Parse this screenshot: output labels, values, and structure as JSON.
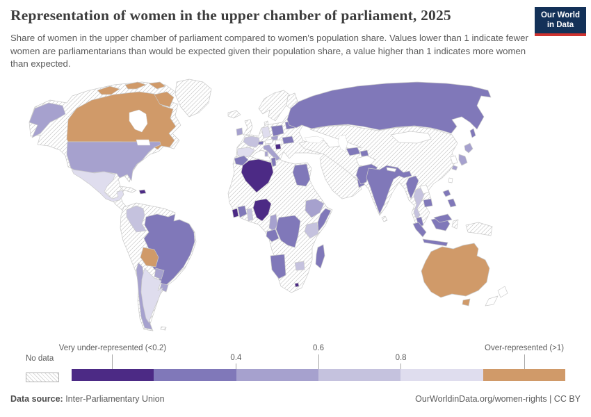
{
  "header": {
    "title": "Representation of women in the upper chamber of parliament, 2025",
    "subtitle": "Share of women in the upper chamber of parliament compared to women's population share. Values lower than 1 indicate fewer women are parliamentarians than would be expected given their population share, a value higher than 1 indicates more women than expected.",
    "logo": {
      "line1": "Our World",
      "line2": "in Data",
      "bg_color": "#133158",
      "accent_color": "#cf322f"
    }
  },
  "legend": {
    "no_data_label": "No data",
    "ticks": [
      {
        "label": "Very under-represented (<0.2)",
        "pos": 0.083,
        "row": "top"
      },
      {
        "label": "0.4",
        "pos": 0.333,
        "row": "bottom"
      },
      {
        "label": "0.6",
        "pos": 0.5,
        "row": "top"
      },
      {
        "label": "0.8",
        "pos": 0.667,
        "row": "bottom"
      },
      {
        "label": "Over-represented (>1)",
        "pos": 0.917,
        "row": "top"
      }
    ],
    "segments": [
      {
        "range": "<0.2",
        "color": "#4c2a85"
      },
      {
        "range": "0.2-0.4",
        "color": "#8078b9"
      },
      {
        "range": "0.4-0.6",
        "color": "#a6a1ce"
      },
      {
        "range": "0.6-0.8",
        "color": "#c5c2de"
      },
      {
        "range": "0.8-1",
        "color": "#dfddee"
      },
      {
        "range": ">1",
        "color": "#d09a69"
      }
    ]
  },
  "footer": {
    "datasource_label": "Data source:",
    "datasource_value": " Inter-Parliamentary Union",
    "credit": "OurWorldinData.org/women-rights | CC BY"
  },
  "chart_data": {
    "type": "heatmap",
    "subtype": "choropleth-world-map",
    "title": "Representation of women in the upper chamber of parliament, 2025",
    "unit": "ratio of share of women in upper chamber to women's population share",
    "bins": [
      "<0.2",
      "0.2-0.4",
      "0.4-0.6",
      "0.6-0.8",
      "0.8-1",
      ">1",
      "no data"
    ],
    "bin_colors": {
      "<0.2": "#4c2a85",
      "0.2-0.4": "#8078b9",
      "0.4-0.6": "#a6a1ce",
      "0.6-0.8": "#c5c2de",
      "0.8-1": "#dfddee",
      ">1": "#d09a69",
      "no data": "hatch"
    },
    "legend_position": "bottom",
    "regions": {
      "Canada": ">1",
      "Australia": ">1",
      "Bolivia": ">1",
      "Mexico": "0.8-1",
      "Argentina": "0.8-1",
      "Spain": "0.8-1",
      "Germany": "0.8-1",
      "Colombia": "0.6-0.8",
      "France": "0.6-0.8",
      "Kenya": "0.6-0.8",
      "Zimbabwe": "0.6-0.8",
      "Ghana": "0.6-0.8",
      "Thailand": "0.6-0.8",
      "United States": "0.4-0.6",
      "Chile": "0.4-0.6",
      "Paraguay": "0.4-0.6",
      "Uruguay": "0.4-0.6",
      "Ireland": "0.4-0.6",
      "Italy": "0.4-0.6",
      "Czechia": "0.4-0.6",
      "Japan": "0.4-0.6",
      "Ethiopia": "0.4-0.6",
      "Cameroon": "0.4-0.6",
      "Russia": "0.2-0.4",
      "Brazil": "0.2-0.4",
      "India": "0.2-0.4",
      "Pakistan": "0.2-0.4",
      "Egypt": "0.2-0.4",
      "Morocco": "0.2-0.4",
      "Tunisia": "0.2-0.4",
      "Poland": "0.2-0.4",
      "Belarus": "0.2-0.4",
      "Romania": "0.2-0.4",
      "Switzerland": "0.2-0.4",
      "DR Congo": "0.2-0.4",
      "Congo": "0.2-0.4",
      "Ivory Coast": "0.2-0.4",
      "Somalia": "0.2-0.4",
      "Namibia": "0.2-0.4",
      "Madagascar": "0.2-0.4",
      "Oman": "0.2-0.4",
      "Uzbekistan": "0.2-0.4",
      "Tajikistan": "0.2-0.4",
      "Myanmar": "0.2-0.4",
      "Cambodia": "0.2-0.4",
      "Malaysia": "0.2-0.4",
      "Indonesia": "0.2-0.4",
      "Philippines": "0.2-0.4",
      "Algeria": "<0.2",
      "Nigeria": "<0.2",
      "Liberia": "<0.2",
      "Haiti": "<0.2",
      "Bosnia and Herzegovina": "<0.2",
      "Lesotho": "<0.2",
      "Greenland": "no data",
      "Peru": "no data",
      "Venezuela": "no data",
      "Cuba": "no data",
      "United Kingdom": "no data",
      "Iceland": "no data",
      "Norway": "no data",
      "Sweden": "no data",
      "Finland": "no data",
      "Denmark": "no data",
      "Ukraine": "no data",
      "Kazakhstan": "no data",
      "Mongolia": "no data",
      "China": "no data",
      "South Korea": "no data",
      "Vietnam": "no data",
      "Laos": "no data",
      "Nepal": "no data",
      "Bangladesh": "no data",
      "Sri Lanka": "no data",
      "Afghanistan": "no data",
      "Iran": "no data",
      "Turkey": "no data",
      "Saudi Arabia": "no data",
      "Libya": "no data",
      "Mali": "no data",
      "Niger": "no data",
      "Chad": "no data",
      "Sudan": "no data",
      "Tanzania": "no data",
      "Angola": "no data",
      "Zambia": "no data",
      "Mozambique": "no data",
      "Botswana": "no data",
      "South Africa": "no data",
      "New Zealand": "no data",
      "Papua New Guinea": "no data",
      "Taiwan": "no data",
      "Austria": "no data",
      "Hungary": "no data",
      "Sulawesi (Indonesia, no data islands)": "no data"
    }
  }
}
